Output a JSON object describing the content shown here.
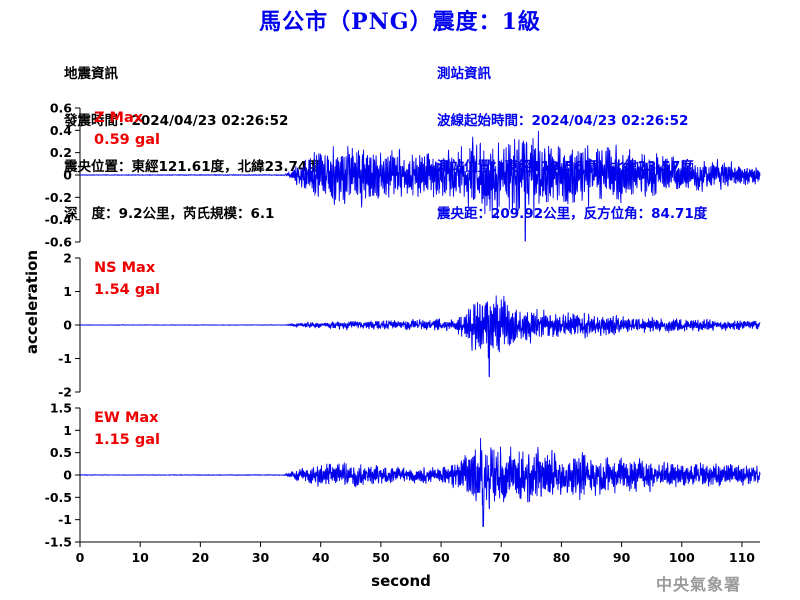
{
  "header": {
    "title": "馬公市（PNG）震度：1級"
  },
  "quake_info": {
    "heading": "地震資訊",
    "time_line": "發震時間：2024/04/23 02:26:52",
    "location_line": "震央位置：東經121.61度，北緯23.74度",
    "depth_line": "深   度：9.2公里，芮氏規模：6.1"
  },
  "station_info": {
    "heading": "測站資訊",
    "wave_start_line": "波線起始時間：2024/04/23 02:26:52",
    "position_line": "測站位置：東經119.56度，北緯23.57度",
    "distance_line": "震央距：209.92公里，反方位角：84.71度"
  },
  "footer": {
    "agency": "中央氣象署"
  },
  "chart_data": {
    "type": "line",
    "title": "馬公市（PNG）震度：1級",
    "xlabel": "second",
    "ylabel": "acceleration",
    "xlim": [
      0,
      113
    ],
    "xticks": [
      0,
      10,
      20,
      30,
      40,
      50,
      60,
      70,
      80,
      90,
      100,
      110
    ],
    "line_color": "#0000ee",
    "label_color": "#ee0000",
    "panels": [
      {
        "component": "Z",
        "label": "Z Max",
        "max_value": "0.59 gal",
        "peak": 0.59,
        "ylim": [
          -0.6,
          0.6
        ],
        "yticks": [
          -0.6,
          -0.4,
          -0.2,
          0,
          0.2,
          0.4,
          0.6
        ],
        "envelope": [
          [
            0,
            0.004
          ],
          [
            34,
            0.006
          ],
          [
            35,
            0.05
          ],
          [
            37,
            0.2
          ],
          [
            39,
            0.34
          ],
          [
            41,
            0.38
          ],
          [
            45,
            0.42
          ],
          [
            50,
            0.36
          ],
          [
            55,
            0.32
          ],
          [
            60,
            0.3
          ],
          [
            64,
            0.42
          ],
          [
            67,
            0.55
          ],
          [
            70,
            0.5
          ],
          [
            74,
            0.59
          ],
          [
            78,
            0.46
          ],
          [
            83,
            0.4
          ],
          [
            88,
            0.38
          ],
          [
            95,
            0.3
          ],
          [
            100,
            0.25
          ],
          [
            105,
            0.2
          ],
          [
            110,
            0.15
          ],
          [
            113,
            0.12
          ]
        ]
      },
      {
        "component": "NS",
        "label": "NS Max",
        "max_value": "1.54 gal",
        "peak": 1.54,
        "ylim": [
          -2,
          2
        ],
        "yticks": [
          -2,
          -1,
          0,
          1,
          2
        ],
        "envelope": [
          [
            0,
            0.01
          ],
          [
            34,
            0.012
          ],
          [
            35,
            0.05
          ],
          [
            38,
            0.12
          ],
          [
            45,
            0.2
          ],
          [
            55,
            0.22
          ],
          [
            62,
            0.3
          ],
          [
            64,
            0.6
          ],
          [
            66,
            1.2
          ],
          [
            68,
            1.54
          ],
          [
            72,
            0.9
          ],
          [
            76,
            0.7
          ],
          [
            80,
            0.6
          ],
          [
            84,
            0.55
          ],
          [
            90,
            0.4
          ],
          [
            100,
            0.3
          ],
          [
            110,
            0.22
          ],
          [
            113,
            0.2
          ]
        ]
      },
      {
        "component": "EW",
        "label": "EW Max",
        "max_value": "1.15 gal",
        "peak": 1.15,
        "ylim": [
          -1.5,
          1.5
        ],
        "yticks": [
          -1.5,
          -1,
          -0.5,
          0,
          0.5,
          1,
          1.5
        ],
        "envelope": [
          [
            0,
            0.01
          ],
          [
            34,
            0.012
          ],
          [
            35,
            0.12
          ],
          [
            38,
            0.35
          ],
          [
            42,
            0.42
          ],
          [
            48,
            0.36
          ],
          [
            55,
            0.28
          ],
          [
            60,
            0.25
          ],
          [
            63,
            0.55
          ],
          [
            65,
            0.8
          ],
          [
            67,
            1.15
          ],
          [
            70,
            1.0
          ],
          [
            74,
            0.9
          ],
          [
            80,
            0.8
          ],
          [
            84,
            0.75
          ],
          [
            90,
            0.55
          ],
          [
            100,
            0.42
          ],
          [
            110,
            0.35
          ],
          [
            113,
            0.32
          ]
        ]
      }
    ]
  }
}
